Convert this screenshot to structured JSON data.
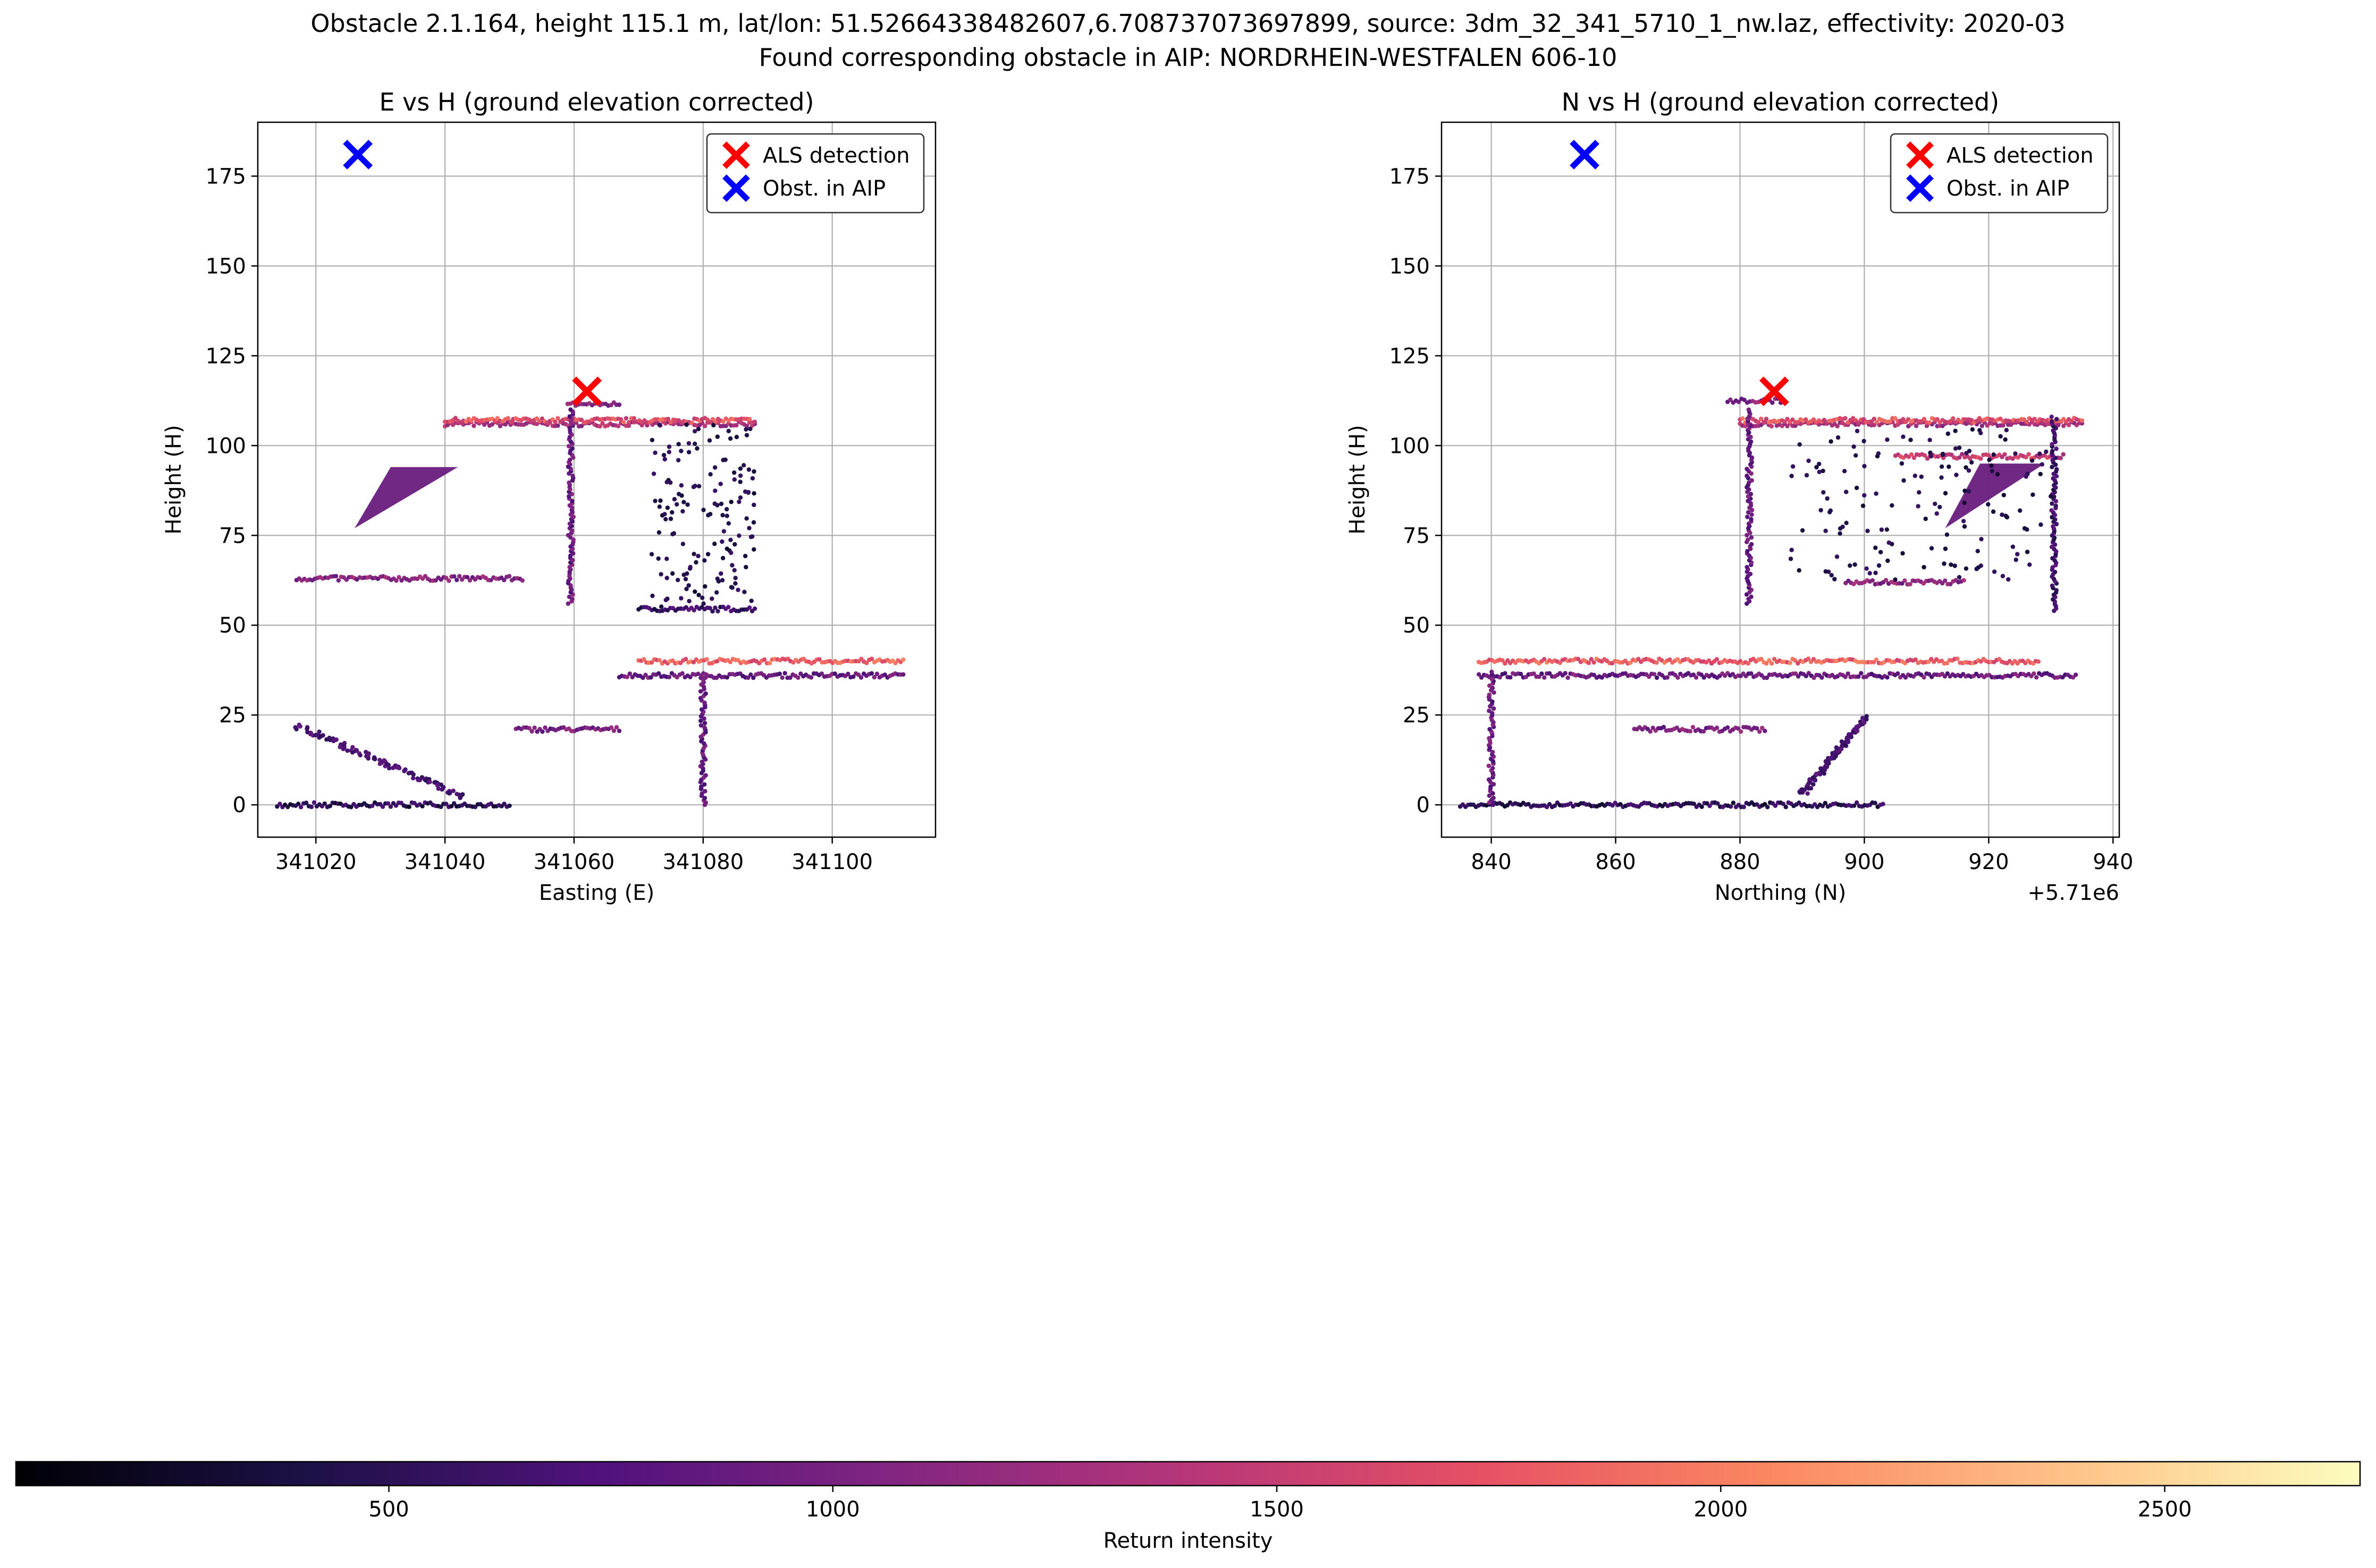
{
  "figure": {
    "title_line1": "Obstacle 2.1.164, height 115.1 m, lat/lon: 51.52664338482607,6.708737073697899, source: 3dm_32_341_5710_1_nw.laz, effectivity: 2020-03",
    "title_line2": "Found corresponding obstacle in AIP: NORDRHEIN-WESTFALEN 606-10"
  },
  "colors": {
    "als_detection": "#ff0000",
    "obst_in_aip": "#0000ff",
    "grid": "#b0b0b0",
    "colormap": [
      "#000004",
      "#1d1147",
      "#51127c",
      "#822681",
      "#b63679",
      "#e65164",
      "#fb8861",
      "#fec287",
      "#fcfdbf"
    ]
  },
  "chart_data": [
    {
      "type": "scatter",
      "title": "E vs H (ground elevation corrected)",
      "xlabel": "Easting (E)",
      "ylabel": "Height (H)",
      "xlim": [
        341011,
        341116
      ],
      "ylim": [
        -9,
        190
      ],
      "xticks": [
        341020,
        341040,
        341060,
        341080,
        341100
      ],
      "xtick_labels": [
        "341020",
        "341040",
        "341060",
        "341080",
        "341100"
      ],
      "yticks": [
        0,
        25,
        50,
        75,
        100,
        125,
        150,
        175
      ],
      "ytick_labels": [
        "0",
        "25",
        "50",
        "75",
        "100",
        "125",
        "150",
        "175"
      ],
      "grid": true,
      "legend": "top-right",
      "series": [
        {
          "name": "ALS detection",
          "marker": "x",
          "color": "#ff0000",
          "x": [
            341062
          ],
          "y": [
            115.1
          ]
        },
        {
          "name": "Obst. in AIP",
          "marker": "x",
          "color": "#0000ff",
          "x": [
            341026.5
          ],
          "y": [
            181
          ]
        }
      ],
      "point_cloud_structures": [
        {
          "kind": "hline",
          "x": [
            341040,
            341088
          ],
          "y": 106,
          "intensity": 1300
        },
        {
          "kind": "hline",
          "x": [
            341040,
            341088
          ],
          "y": 107,
          "intensity": 1700
        },
        {
          "kind": "hline",
          "x": [
            341059,
            341067
          ],
          "y": 111.5,
          "intensity": 1100
        },
        {
          "kind": "hline",
          "x": [
            341017,
            341052
          ],
          "y": 63,
          "intensity": 1100
        },
        {
          "kind": "hline",
          "x": [
            341070,
            341088
          ],
          "y": 54.5,
          "intensity": 600
        },
        {
          "kind": "hline",
          "x": [
            341067,
            341111
          ],
          "y": 36,
          "intensity": 900
        },
        {
          "kind": "hline",
          "x": [
            341070,
            341111
          ],
          "y": 40,
          "intensity": 1800
        },
        {
          "kind": "hline",
          "x": [
            341051,
            341067
          ],
          "y": 21,
          "intensity": 1000
        },
        {
          "kind": "hline",
          "x": [
            341014,
            341050
          ],
          "y": 0,
          "intensity": 500
        },
        {
          "kind": "wedge",
          "x": [
            341026,
            341042
          ],
          "y": [
            77,
            94
          ],
          "intensity": 900
        },
        {
          "kind": "diag",
          "x": [
            341017,
            341043
          ],
          "y": [
            22,
            2
          ],
          "intensity": 700
        },
        {
          "kind": "vline",
          "x": 341059.5,
          "y": [
            56,
            110
          ],
          "intensity": 900
        },
        {
          "kind": "vline",
          "x": 341080,
          "y": [
            0,
            36
          ],
          "intensity": 900
        },
        {
          "kind": "scatter",
          "x": [
            341072,
            341088
          ],
          "y": [
            55,
            106
          ],
          "intensity": 300
        }
      ]
    },
    {
      "type": "scatter",
      "title": "N vs H (ground elevation corrected)",
      "xlabel": "Northing (N)",
      "ylabel": "Height (H)",
      "offset_label": "+5.71e6",
      "xlim": [
        5710832,
        5710941
      ],
      "ylim": [
        -9,
        190
      ],
      "xticks": [
        5710840,
        5710860,
        5710880,
        5710900,
        5710920,
        5710940
      ],
      "xtick_labels": [
        "840",
        "860",
        "880",
        "900",
        "920",
        "940"
      ],
      "yticks": [
        0,
        25,
        50,
        75,
        100,
        125,
        150,
        175
      ],
      "ytick_labels": [
        "0",
        "25",
        "50",
        "75",
        "100",
        "125",
        "150",
        "175"
      ],
      "grid": true,
      "legend": "top-right",
      "series": [
        {
          "name": "ALS detection",
          "marker": "x",
          "color": "#ff0000",
          "x": [
            5710885.5
          ],
          "y": [
            115.1
          ]
        },
        {
          "name": "Obst. in AIP",
          "marker": "x",
          "color": "#0000ff",
          "x": [
            5710855
          ],
          "y": [
            181
          ]
        }
      ],
      "point_cloud_structures": [
        {
          "kind": "hline",
          "x": [
            5710880,
            5710935
          ],
          "y": 106,
          "intensity": 1300
        },
        {
          "kind": "hline",
          "x": [
            5710880,
            5710935
          ],
          "y": 107,
          "intensity": 1700
        },
        {
          "kind": "hline",
          "x": [
            5710878,
            5710887
          ],
          "y": 112.5,
          "intensity": 1100
        },
        {
          "kind": "hline",
          "x": [
            5710905,
            5710932
          ],
          "y": 97,
          "intensity": 1500
        },
        {
          "kind": "hline",
          "x": [
            5710838,
            5710934
          ],
          "y": 36,
          "intensity": 900
        },
        {
          "kind": "hline",
          "x": [
            5710838,
            5710928
          ],
          "y": 40,
          "intensity": 1800
        },
        {
          "kind": "hline",
          "x": [
            5710897,
            5710916
          ],
          "y": 62,
          "intensity": 1100
        },
        {
          "kind": "hline",
          "x": [
            5710863,
            5710884
          ],
          "y": 21,
          "intensity": 1000
        },
        {
          "kind": "hline",
          "x": [
            5710835,
            5710903
          ],
          "y": 0,
          "intensity": 500
        },
        {
          "kind": "wedge",
          "x": [
            5710913,
            5710929
          ],
          "y": [
            77,
            95
          ],
          "intensity": 900
        },
        {
          "kind": "diag",
          "x": [
            5710890,
            5710900
          ],
          "y": [
            3,
            24
          ],
          "intensity": 700
        },
        {
          "kind": "vline",
          "x": 5710881.5,
          "y": [
            56,
            110
          ],
          "intensity": 900
        },
        {
          "kind": "vline",
          "x": 5710840,
          "y": [
            0,
            37
          ],
          "intensity": 900
        },
        {
          "kind": "vline",
          "x": 5710930.5,
          "y": [
            54,
            108
          ],
          "intensity": 600
        },
        {
          "kind": "scatter",
          "x": [
            5710888,
            5710930
          ],
          "y": [
            62,
            106
          ],
          "intensity": 300
        }
      ]
    }
  ],
  "colorbar": {
    "label": "Return intensity",
    "range": [
      80,
      2720
    ],
    "ticks": [
      500,
      1000,
      1500,
      2000,
      2500
    ],
    "tick_labels": [
      "500",
      "1000",
      "1500",
      "2000",
      "2500"
    ]
  }
}
